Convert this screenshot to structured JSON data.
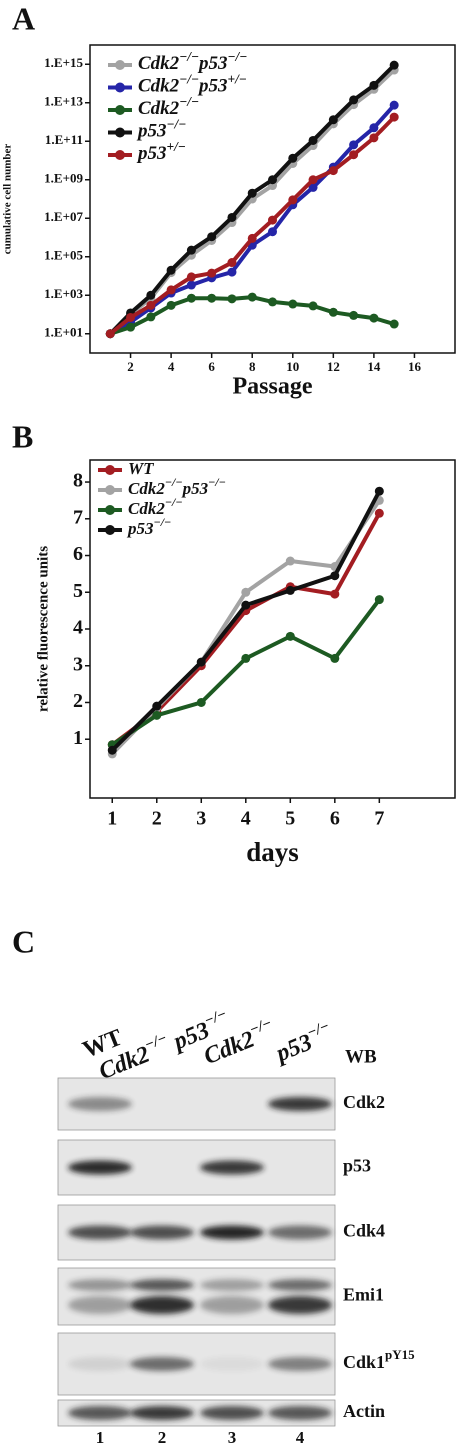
{
  "chart_data": [
    {
      "type": "line",
      "label": "A",
      "ylabel": "cumulative cell number",
      "xlabel": "Passage",
      "log_y": true,
      "grid": false,
      "legend": "upper left",
      "x": [
        1,
        2,
        3,
        4,
        5,
        6,
        7,
        8,
        9,
        10,
        11,
        12,
        13,
        14,
        15
      ],
      "xlim": [
        0,
        18
      ],
      "xticks": [
        2,
        4,
        6,
        8,
        10,
        12,
        14,
        16
      ],
      "ylim": [
        1,
        1e+16
      ],
      "yticks": [
        {
          "value": 10,
          "label": "1.E+01"
        },
        {
          "value": 1000,
          "label": "1.E+03"
        },
        {
          "value": 100000,
          "label": "1.E+05"
        },
        {
          "value": 10000000,
          "label": "1.E+07"
        },
        {
          "value": 1000000000,
          "label": "1.E+09"
        },
        {
          "value": 100000000000,
          "label": "1.E+11"
        },
        {
          "value": 10000000000000,
          "label": "1.E+13"
        },
        {
          "value": 1000000000000000,
          "label": "1.E+15"
        }
      ],
      "series": [
        {
          "name": "Cdk2-/-p53-/-",
          "color": "#a3a3a3",
          "values": [
            10,
            100,
            700,
            15000,
            120000,
            700000,
            6000000,
            100000000,
            500000000,
            7000000000,
            60000000000,
            800000000000,
            8000000000000,
            50000000000000,
            500000000000000
          ]
        },
        {
          "name": "Cdk2-/-p53+/-",
          "color": "#2525a8",
          "values": [
            10,
            40,
            220,
            1300,
            3400,
            8000,
            16000,
            400000,
            2000000,
            50000000,
            400000000,
            4500000000,
            65000000000,
            500000000000,
            7500000000000
          ]
        },
        {
          "name": "Cdk2-/-",
          "color": "#1d5a22",
          "values": [
            10,
            22,
            75,
            300,
            700,
            700,
            650,
            800,
            450,
            350,
            280,
            130,
            90,
            65,
            32
          ]
        },
        {
          "name": "p53-/-",
          "color": "#111111",
          "values": [
            10,
            120,
            1000,
            20000,
            220000,
            1100000,
            11000000,
            200000000,
            1000000000,
            13000000000,
            110000000000,
            1300000000000,
            14000000000000,
            80000000000000,
            900000000000000
          ]
        },
        {
          "name": "p53+/-",
          "color": "#a31d22",
          "values": [
            10,
            70,
            300,
            1900,
            9000,
            14000,
            50000,
            900000,
            8000000,
            90000000,
            1000000000,
            3000000000,
            20000000000,
            150000000000,
            1800000000000
          ]
        }
      ]
    },
    {
      "type": "line",
      "label": "B",
      "ylabel": "relative fluorescence units",
      "xlabel": "days",
      "log_y": false,
      "grid": false,
      "legend": "upper left",
      "x": [
        1,
        2,
        3,
        4,
        5,
        6,
        7
      ],
      "xlim": [
        0.5,
        8.7
      ],
      "xticks": [
        1,
        2,
        3,
        4,
        5,
        6,
        7
      ],
      "ylim": [
        -0.6,
        8.6
      ],
      "yticks": [
        1,
        2,
        3,
        4,
        5,
        6,
        7,
        8
      ],
      "series": [
        {
          "name": "WT",
          "color": "#a31d22",
          "values": [
            0.85,
            1.75,
            3.0,
            4.5,
            5.15,
            4.95,
            7.15
          ]
        },
        {
          "name": "Cdk2-/-p53-/-",
          "color": "#a3a3a3",
          "values": [
            0.6,
            1.85,
            3.1,
            5.0,
            5.85,
            5.7,
            7.5
          ]
        },
        {
          "name": "Cdk2-/-",
          "color": "#1d5a22",
          "values": [
            0.85,
            1.65,
            2.0,
            3.2,
            3.8,
            3.2,
            4.8
          ]
        },
        {
          "name": "p53-/-",
          "color": "#111111",
          "values": [
            0.7,
            1.9,
            3.1,
            4.65,
            5.05,
            5.45,
            7.75
          ]
        }
      ]
    }
  ],
  "blot": {
    "label": "C",
    "columns": [
      "WT",
      "Cdk2-/- p53-/-",
      "Cdk2-/-",
      "p53-/-"
    ],
    "method": "WB",
    "rows": [
      {
        "name": "Cdk2"
      },
      {
        "name": "p53"
      },
      {
        "name": "Cdk4"
      },
      {
        "name": "Emi1"
      },
      {
        "name": "Cdk1",
        "sup": "pY15"
      },
      {
        "name": "Actin"
      }
    ],
    "lanes": [
      "1",
      "2",
      "3",
      "4"
    ]
  }
}
